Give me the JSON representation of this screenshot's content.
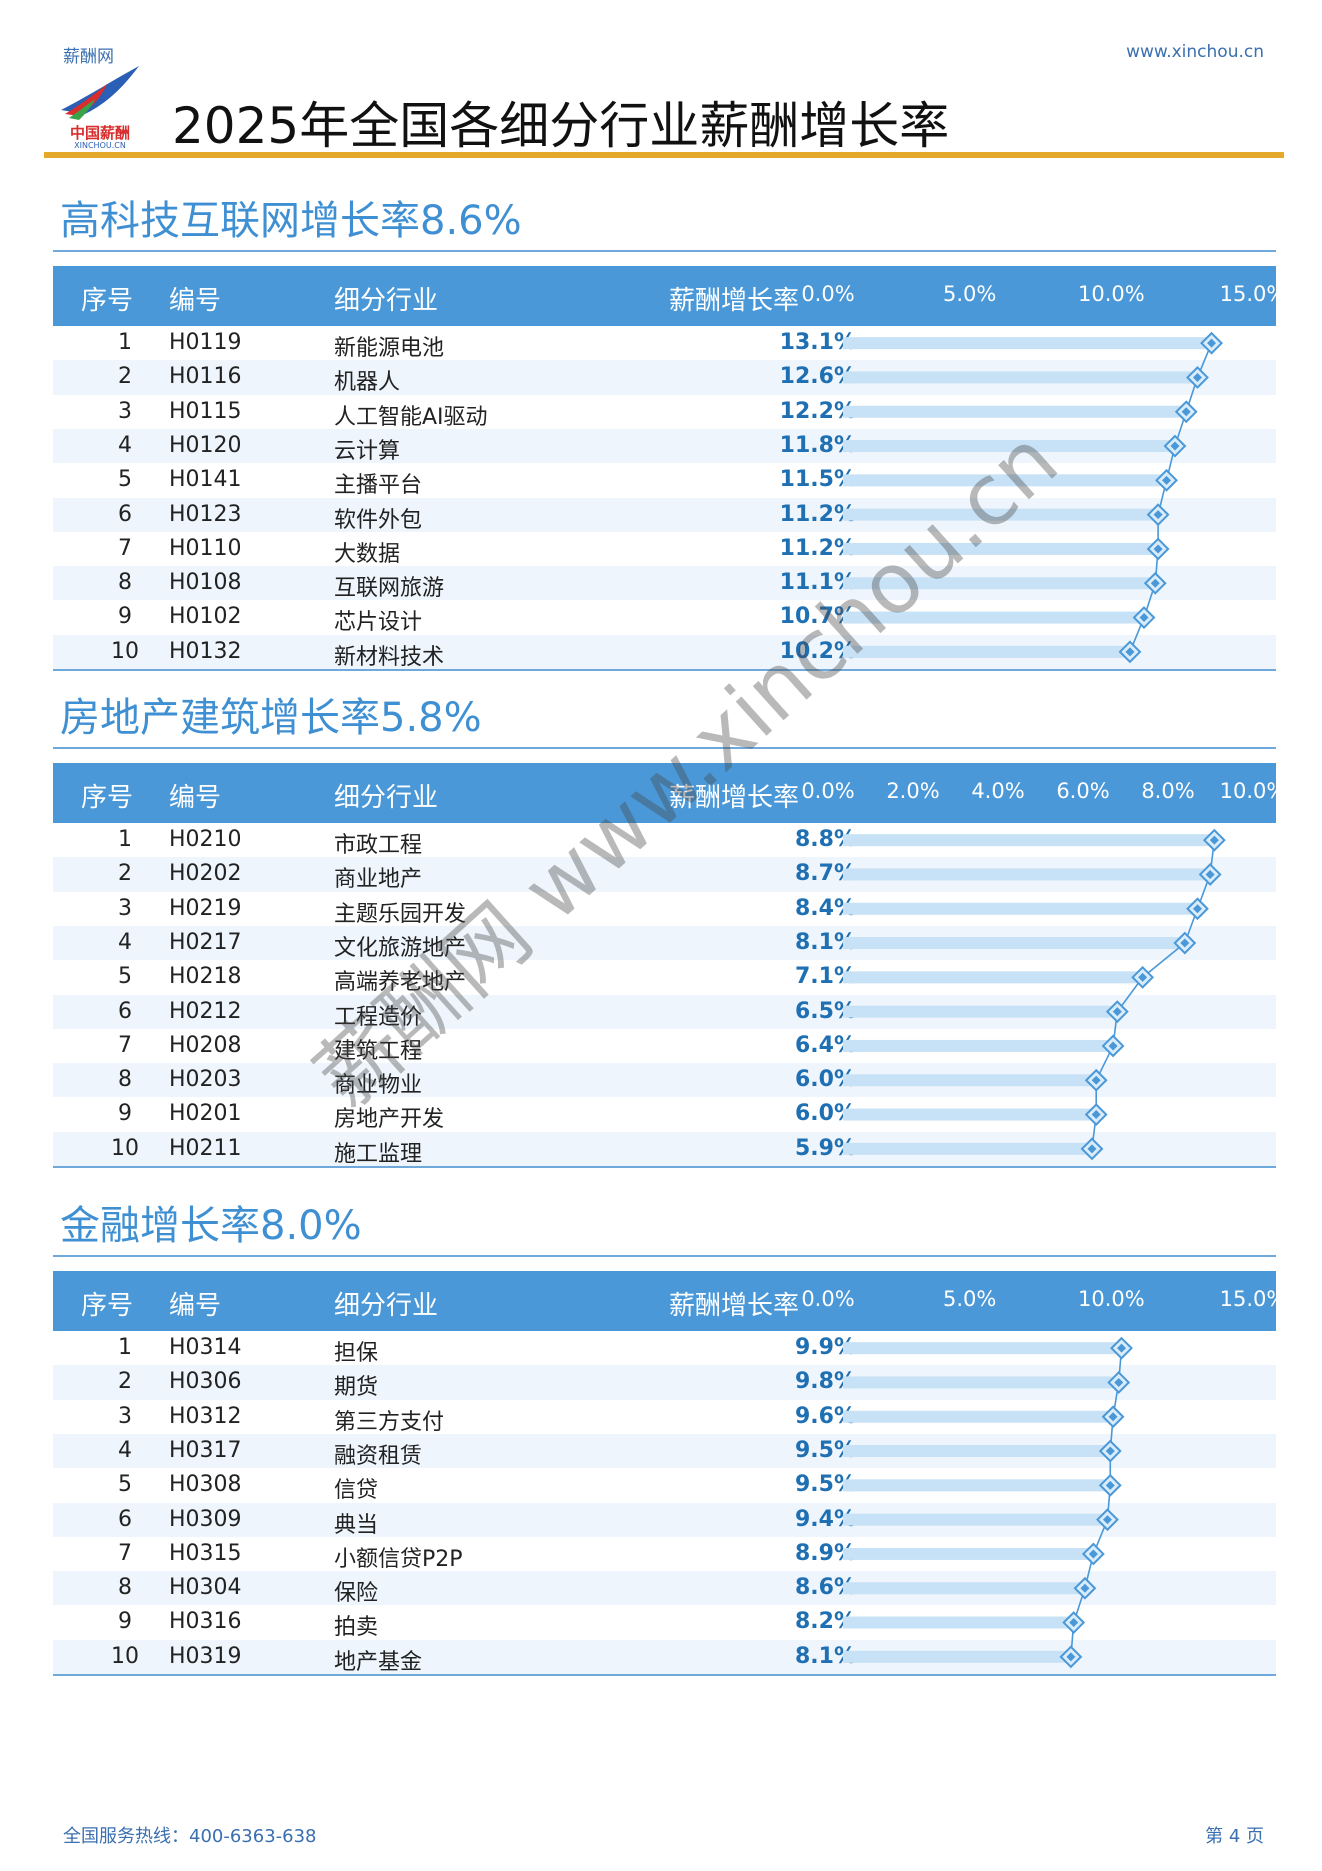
{
  "header": {
    "site_name": "薪酬网",
    "site_url": "www.xinchou.cn",
    "logo_text_cn": "中国薪酬",
    "logo_text_en": "XINCHOU.CN",
    "title": "2025年全国各细分行业薪酬增长率"
  },
  "columns": {
    "index": "序号",
    "code": "编号",
    "industry": "细分行业",
    "rate": "薪酬增长率"
  },
  "colors": {
    "accent_rule": "#e4a92a",
    "header_bg": "#4a98d8",
    "section_title": "#3f8fd3",
    "bar": "#c7e2f6",
    "marker": "#4a98d8"
  },
  "sections": [
    {
      "title": "高科技互联网增长率8.6%",
      "ticks": [
        "0.0%",
        "5.0%",
        "10.0%",
        "15.0%"
      ],
      "tick_values": [
        0,
        5,
        10,
        15
      ],
      "max": 15,
      "rows": [
        {
          "idx": "1",
          "code": "H0119",
          "industry": "新能源电池",
          "rate": "13.1%",
          "value": 13.1
        },
        {
          "idx": "2",
          "code": "H0116",
          "industry": "机器人",
          "rate": "12.6%",
          "value": 12.6
        },
        {
          "idx": "3",
          "code": "H0115",
          "industry": "人工智能AI驱动",
          "rate": "12.2%",
          "value": 12.2
        },
        {
          "idx": "4",
          "code": "H0120",
          "industry": "云计算",
          "rate": "11.8%",
          "value": 11.8
        },
        {
          "idx": "5",
          "code": "H0141",
          "industry": "主播平台",
          "rate": "11.5%",
          "value": 11.5
        },
        {
          "idx": "6",
          "code": "H0123",
          "industry": "软件外包",
          "rate": "11.2%",
          "value": 11.2
        },
        {
          "idx": "7",
          "code": "H0110",
          "industry": "大数据",
          "rate": "11.2%",
          "value": 11.2
        },
        {
          "idx": "8",
          "code": "H0108",
          "industry": "互联网旅游",
          "rate": "11.1%",
          "value": 11.1
        },
        {
          "idx": "9",
          "code": "H0102",
          "industry": "芯片设计",
          "rate": "10.7%",
          "value": 10.7
        },
        {
          "idx": "10",
          "code": "H0132",
          "industry": "新材料技术",
          "rate": "10.2%",
          "value": 10.2
        }
      ]
    },
    {
      "title": "房地产建筑增长率5.8%",
      "ticks": [
        "0.0%",
        "2.0%",
        "4.0%",
        "6.0%",
        "8.0%",
        "10.0%"
      ],
      "tick_values": [
        0,
        2,
        4,
        6,
        8,
        10
      ],
      "max": 10,
      "rows": [
        {
          "idx": "1",
          "code": "H0210",
          "industry": "市政工程",
          "rate": "8.8%",
          "value": 8.8
        },
        {
          "idx": "2",
          "code": "H0202",
          "industry": "商业地产",
          "rate": "8.7%",
          "value": 8.7
        },
        {
          "idx": "3",
          "code": "H0219",
          "industry": "主题乐园开发",
          "rate": "8.4%",
          "value": 8.4
        },
        {
          "idx": "4",
          "code": "H0217",
          "industry": "文化旅游地产",
          "rate": "8.1%",
          "value": 8.1
        },
        {
          "idx": "5",
          "code": "H0218",
          "industry": "高端养老地产",
          "rate": "7.1%",
          "value": 7.1
        },
        {
          "idx": "6",
          "code": "H0212",
          "industry": "工程造价",
          "rate": "6.5%",
          "value": 6.5
        },
        {
          "idx": "7",
          "code": "H0208",
          "industry": "建筑工程",
          "rate": "6.4%",
          "value": 6.4
        },
        {
          "idx": "8",
          "code": "H0203",
          "industry": "商业物业",
          "rate": "6.0%",
          "value": 6.0
        },
        {
          "idx": "9",
          "code": "H0201",
          "industry": "房地产开发",
          "rate": "6.0%",
          "value": 6.0
        },
        {
          "idx": "10",
          "code": "H0211",
          "industry": "施工监理",
          "rate": "5.9%",
          "value": 5.9
        }
      ]
    },
    {
      "title": "金融增长率8.0%",
      "ticks": [
        "0.0%",
        "5.0%",
        "10.0%",
        "15.0%"
      ],
      "tick_values": [
        0,
        5,
        10,
        15
      ],
      "max": 15,
      "rows": [
        {
          "idx": "1",
          "code": "H0314",
          "industry": "担保",
          "rate": "9.9%",
          "value": 9.9
        },
        {
          "idx": "2",
          "code": "H0306",
          "industry": "期货",
          "rate": "9.8%",
          "value": 9.8
        },
        {
          "idx": "3",
          "code": "H0312",
          "industry": "第三方支付",
          "rate": "9.6%",
          "value": 9.6
        },
        {
          "idx": "4",
          "code": "H0317",
          "industry": "融资租赁",
          "rate": "9.5%",
          "value": 9.5
        },
        {
          "idx": "5",
          "code": "H0308",
          "industry": "信贷",
          "rate": "9.5%",
          "value": 9.5
        },
        {
          "idx": "6",
          "code": "H0309",
          "industry": "典当",
          "rate": "9.4%",
          "value": 9.4
        },
        {
          "idx": "7",
          "code": "H0315",
          "industry": "小额信贷P2P",
          "rate": "8.9%",
          "value": 8.9
        },
        {
          "idx": "8",
          "code": "H0304",
          "industry": "保险",
          "rate": "8.6%",
          "value": 8.6
        },
        {
          "idx": "9",
          "code": "H0316",
          "industry": "拍卖",
          "rate": "8.2%",
          "value": 8.2
        },
        {
          "idx": "10",
          "code": "H0319",
          "industry": "地产基金",
          "rate": "8.1%",
          "value": 8.1
        }
      ]
    }
  ],
  "watermark": "薪酬网 www.xinchou.cn",
  "footer": {
    "hotline": "全国服务热线：400-6363-638",
    "page": "第 4 页"
  }
}
